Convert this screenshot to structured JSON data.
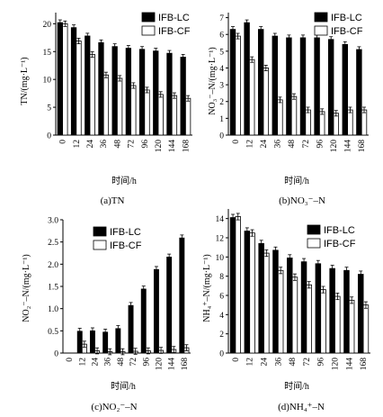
{
  "colors": {
    "lc": "#000000",
    "cf": "#ffffff",
    "axis": "#000000"
  },
  "chart_data": [
    {
      "type": "bar",
      "title": "(a)TN",
      "xlabel": "时间/h",
      "ylabel": "TN/(mg·L⁻¹)",
      "ylim": [
        0,
        22
      ],
      "yticks": [
        "0",
        "5",
        "10",
        "15",
        "20"
      ],
      "yticks_values": [
        0,
        5,
        10,
        15,
        20
      ],
      "legend_position": "top-right",
      "categories": [
        "0",
        "12",
        "24",
        "36",
        "48",
        "72",
        "96",
        "120",
        "144",
        "168"
      ],
      "series": [
        {
          "name": "IFB-LC",
          "values": [
            20.2,
            19.3,
            17.8,
            16.6,
            15.9,
            15.6,
            15.4,
            15.1,
            14.7,
            14.0
          ]
        },
        {
          "name": "IFB-CF",
          "values": [
            20.0,
            16.9,
            14.5,
            10.8,
            10.2,
            8.9,
            8.1,
            7.3,
            7.1,
            6.6
          ]
        }
      ]
    },
    {
      "type": "bar",
      "title": "(b)NO₃⁻–N",
      "xlabel": "时间/h",
      "ylabel": "NO₃⁻–N/(mg·L⁻¹)",
      "ylim": [
        0,
        7.3
      ],
      "yticks": [
        "0",
        "1",
        "2",
        "3",
        "4",
        "5",
        "6",
        "7"
      ],
      "yticks_values": [
        0,
        1,
        2,
        3,
        4,
        5,
        6,
        7
      ],
      "legend_position": "top-right",
      "categories": [
        "0",
        "12",
        "24",
        "36",
        "48",
        "72",
        "96",
        "120",
        "144",
        "168"
      ],
      "series": [
        {
          "name": "IFB-LC",
          "values": [
            6.3,
            6.7,
            6.3,
            5.9,
            5.8,
            5.8,
            5.8,
            5.7,
            5.4,
            5.1
          ]
        },
        {
          "name": "IFB-CF",
          "values": [
            5.9,
            4.5,
            4.0,
            2.1,
            2.3,
            1.5,
            1.4,
            1.3,
            1.5,
            1.5
          ]
        }
      ]
    },
    {
      "type": "bar",
      "title": "(c)NO₂⁻–N",
      "xlabel": "时间/h",
      "ylabel": "NO₂⁻–N/(mg·L⁻¹)",
      "ylim": [
        0,
        3.0
      ],
      "yticks": [
        "0",
        "0.5",
        "1.0",
        "1.5",
        "2.0",
        "2.5",
        "3.0"
      ],
      "yticks_values": [
        0,
        0.5,
        1.0,
        1.5,
        2.0,
        2.5,
        3.0
      ],
      "legend_position": "top-left",
      "categories": [
        "0",
        "12",
        "24",
        "36",
        "48",
        "72",
        "96",
        "120",
        "144",
        "168"
      ],
      "series": [
        {
          "name": "IFB-LC",
          "values": [
            0.0,
            0.49,
            0.5,
            0.47,
            0.55,
            1.07,
            1.44,
            1.88,
            2.16,
            2.59
          ]
        },
        {
          "name": "IFB-CF",
          "values": [
            0.0,
            0.2,
            0.05,
            0.03,
            0.03,
            0.04,
            0.05,
            0.06,
            0.08,
            0.12
          ]
        }
      ]
    },
    {
      "type": "bar",
      "title": "(d)NH₄⁺–N",
      "xlabel": "时间/h",
      "ylabel": "NH₄⁺–N/(mg·L⁻¹)",
      "ylim": [
        0,
        15
      ],
      "yticks": [
        "0",
        "2",
        "4",
        "6",
        "8",
        "10",
        "12",
        "14"
      ],
      "yticks_values": [
        0,
        2,
        4,
        6,
        8,
        10,
        12,
        14
      ],
      "legend_position": "top-right",
      "categories": [
        "0",
        "12",
        "24",
        "36",
        "48",
        "72",
        "96",
        "120",
        "144",
        "168"
      ],
      "series": [
        {
          "name": "IFB-LC",
          "values": [
            14.1,
            12.7,
            11.4,
            10.7,
            9.9,
            9.5,
            9.3,
            8.8,
            8.6,
            8.2
          ]
        },
        {
          "name": "IFB-CF",
          "values": [
            14.2,
            12.5,
            10.4,
            8.6,
            7.9,
            7.1,
            6.6,
            5.9,
            5.5,
            5.0
          ]
        }
      ]
    }
  ]
}
